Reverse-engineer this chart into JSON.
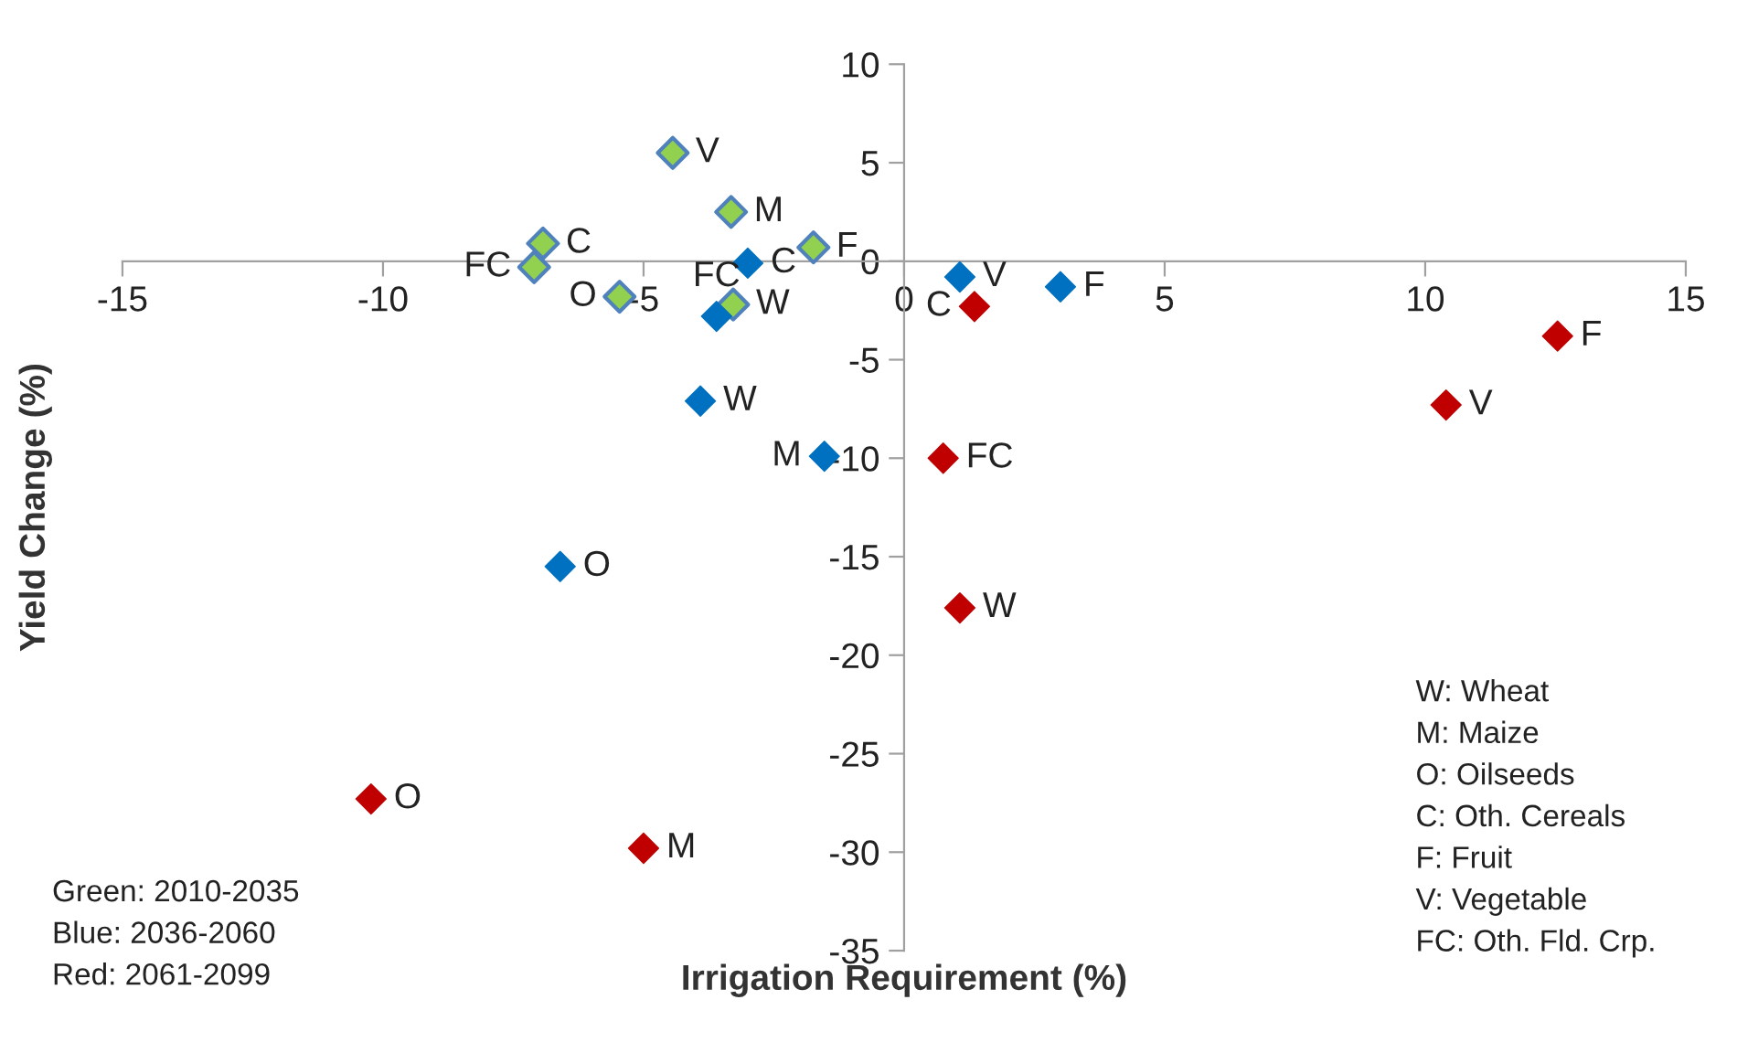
{
  "chart_data": {
    "type": "scatter",
    "xlabel": "Irrigation Requirement (%)",
    "ylabel": "Yield Change (%)",
    "xlim": [
      -15,
      15
    ],
    "xticks": [
      -15,
      -10,
      -5,
      0,
      5,
      10,
      15
    ],
    "ylim": [
      -35,
      10
    ],
    "yticks": [
      -35,
      -30,
      -25,
      -20,
      -15,
      -10,
      -5,
      0,
      5,
      10
    ],
    "grid": false,
    "legend": false,
    "marker": "diamond",
    "series": [
      {
        "color": "#92d050",
        "x": [
          -4.44,
          -3.32,
          -6.93,
          -7.1,
          -5.46,
          -3.28,
          -1.74
        ],
        "values": [
          5.5,
          2.5,
          0.9,
          -0.3,
          -1.8,
          -2.2,
          0.7
        ]
      },
      {
        "color": "#0070c0",
        "x": [
          -3.0,
          -3.6,
          -3.91,
          -1.53,
          -6.6,
          1.07,
          3.0
        ],
        "values": [
          -0.1,
          -2.8,
          -7.1,
          -9.9,
          -15.5,
          -0.8,
          -1.3
        ]
      },
      {
        "color": "#c00000",
        "x": [
          1.35,
          0.75,
          1.07,
          10.4,
          12.54,
          -10.23,
          -5.0
        ],
        "values": [
          -2.3,
          -10.0,
          -17.6,
          -7.3,
          -3.8,
          -27.3,
          -29.8
        ]
      }
    ],
    "annotations": [
      {
        "text": "V",
        "x": -4.44,
        "y": 5.5
      },
      {
        "text": "M",
        "x": -3.32,
        "y": 2.5
      },
      {
        "text": "C",
        "x": -6.93,
        "y": 0.9
      },
      {
        "text": "FC",
        "x": -7.1,
        "y": -0.3
      },
      {
        "text": "O",
        "x": -5.46,
        "y": -1.8
      },
      {
        "text": "W",
        "x": -3.28,
        "y": -2.2
      },
      {
        "text": "F",
        "x": -1.74,
        "y": 0.7
      },
      {
        "text": "C",
        "x": -3.0,
        "y": -0.1
      },
      {
        "text": "FC",
        "x": -3.6,
        "y": -2.8
      },
      {
        "text": "W",
        "x": -3.91,
        "y": -7.1
      },
      {
        "text": "M",
        "x": -1.53,
        "y": -9.9
      },
      {
        "text": "O",
        "x": -6.6,
        "y": -15.5
      },
      {
        "text": "V",
        "x": 1.07,
        "y": -0.8
      },
      {
        "text": "F",
        "x": 3.0,
        "y": -1.3
      },
      {
        "text": "C",
        "x": 1.35,
        "y": -2.3
      },
      {
        "text": "FC",
        "x": 0.75,
        "y": -10.0
      },
      {
        "text": "W",
        "x": 1.07,
        "y": -17.6
      },
      {
        "text": "V",
        "x": 10.4,
        "y": -7.3
      },
      {
        "text": "F",
        "x": 12.54,
        "y": -3.8
      },
      {
        "text": "O",
        "x": -10.23,
        "y": -27.3
      },
      {
        "text": "M",
        "x": -5.0,
        "y": -29.8
      },
      "W: Wheat\nM: Maize\nO: Oilseeds\nC: Oth. Cereals\nF: Fruit\nV: Vegetable\nFC: Oth. Fld. Crp.",
      "Green: 2010-2035\nBlue: 2036-2060\nRed: 2061-2099"
    ]
  }
}
